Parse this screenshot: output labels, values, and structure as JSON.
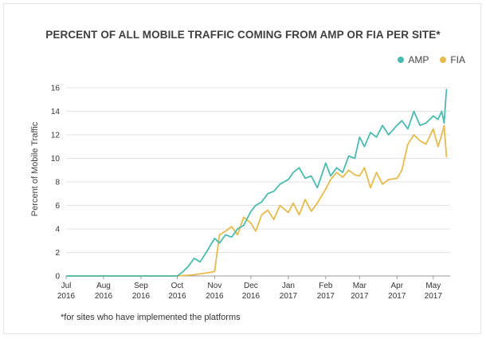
{
  "chart_data": {
    "type": "line",
    "title": "PERCENT OF ALL MOBILE TRAFFIC COMING FROM AMP OR FIA PER SITE*",
    "ylabel": "Percent of Mobile Traffic",
    "xlabel": "",
    "footnote": "*for sites who have implemented the platforms",
    "ylim": [
      0,
      16
    ],
    "yticks": [
      0,
      2,
      4,
      6,
      8,
      10,
      12,
      14,
      16
    ],
    "xlim": [
      "2016-07-01",
      "2017-05-15"
    ],
    "xticks": [
      {
        "date": "2016-07-01",
        "month": "Jul",
        "year": "2016"
      },
      {
        "date": "2016-08-01",
        "month": "Aug",
        "year": "2016"
      },
      {
        "date": "2016-09-01",
        "month": "Sep",
        "year": "2016"
      },
      {
        "date": "2016-10-01",
        "month": "Oct",
        "year": "2016"
      },
      {
        "date": "2016-11-01",
        "month": "Nov",
        "year": "2016"
      },
      {
        "date": "2016-12-01",
        "month": "Dec",
        "year": "2016"
      },
      {
        "date": "2017-01-01",
        "month": "Jan",
        "year": "2017"
      },
      {
        "date": "2017-02-01",
        "month": "Feb",
        "year": "2017"
      },
      {
        "date": "2017-03-01",
        "month": "Mar",
        "year": "2017"
      },
      {
        "date": "2017-04-01",
        "month": "Apr",
        "year": "2017"
      },
      {
        "date": "2017-05-01",
        "month": "May",
        "year": "2017"
      }
    ],
    "grid": true,
    "legend_position": "top-right",
    "series": [
      {
        "name": "AMP",
        "color": "#4bbab0",
        "x": [
          "2016-07-01",
          "2016-08-01",
          "2016-09-01",
          "2016-10-01",
          "2016-10-05",
          "2016-10-10",
          "2016-10-15",
          "2016-10-20",
          "2016-10-25",
          "2016-11-01",
          "2016-11-05",
          "2016-11-10",
          "2016-11-15",
          "2016-11-20",
          "2016-11-25",
          "2016-12-01",
          "2016-12-05",
          "2016-12-10",
          "2016-12-15",
          "2016-12-20",
          "2016-12-25",
          "2017-01-01",
          "2017-01-05",
          "2017-01-10",
          "2017-01-15",
          "2017-01-20",
          "2017-01-25",
          "2017-02-01",
          "2017-02-05",
          "2017-02-10",
          "2017-02-15",
          "2017-02-20",
          "2017-02-25",
          "2017-03-01",
          "2017-03-05",
          "2017-03-10",
          "2017-03-15",
          "2017-03-20",
          "2017-03-25",
          "2017-04-01",
          "2017-04-05",
          "2017-04-10",
          "2017-04-15",
          "2017-04-20",
          "2017-04-25",
          "2017-05-01",
          "2017-05-05",
          "2017-05-08",
          "2017-05-10",
          "2017-05-12"
        ],
        "y": [
          0,
          0,
          0,
          0,
          0.3,
          0.8,
          1.5,
          1.2,
          2.0,
          3.2,
          2.8,
          3.5,
          3.3,
          4.0,
          4.3,
          5.5,
          6.0,
          6.3,
          7.0,
          7.2,
          7.8,
          8.2,
          8.8,
          9.2,
          8.3,
          8.5,
          7.5,
          9.6,
          8.5,
          9.2,
          8.8,
          10.2,
          10.0,
          11.8,
          11.0,
          12.2,
          11.8,
          12.8,
          12.0,
          12.8,
          13.2,
          12.5,
          14.0,
          12.8,
          13.0,
          13.6,
          13.3,
          14.0,
          13.0,
          15.9
        ]
      },
      {
        "name": "FIA",
        "color": "#e6bb4c",
        "x": [
          "2016-07-01",
          "2016-08-01",
          "2016-09-01",
          "2016-10-01",
          "2016-10-15",
          "2016-10-28",
          "2016-11-01",
          "2016-11-05",
          "2016-11-10",
          "2016-11-15",
          "2016-11-20",
          "2016-11-25",
          "2016-12-01",
          "2016-12-05",
          "2016-12-10",
          "2016-12-15",
          "2016-12-20",
          "2016-12-25",
          "2017-01-01",
          "2017-01-05",
          "2017-01-10",
          "2017-01-15",
          "2017-01-20",
          "2017-01-25",
          "2017-02-01",
          "2017-02-05",
          "2017-02-10",
          "2017-02-15",
          "2017-02-20",
          "2017-02-25",
          "2017-03-01",
          "2017-03-05",
          "2017-03-10",
          "2017-03-15",
          "2017-03-20",
          "2017-03-25",
          "2017-04-01",
          "2017-04-05",
          "2017-04-10",
          "2017-04-15",
          "2017-04-20",
          "2017-04-25",
          "2017-05-01",
          "2017-05-05",
          "2017-05-08",
          "2017-05-10",
          "2017-05-12"
        ],
        "y": [
          0,
          0,
          0,
          0,
          0.1,
          0.3,
          0.4,
          3.5,
          3.8,
          4.2,
          3.5,
          5.0,
          4.5,
          3.8,
          5.2,
          5.6,
          4.8,
          6.0,
          5.4,
          6.2,
          5.2,
          6.5,
          5.5,
          6.2,
          7.4,
          8.2,
          8.8,
          8.4,
          9.0,
          8.6,
          8.5,
          9.2,
          7.5,
          8.8,
          7.8,
          8.2,
          8.3,
          9.0,
          11.2,
          12.0,
          11.5,
          11.2,
          12.5,
          11.0,
          12.0,
          12.8,
          10.1
        ]
      }
    ]
  }
}
